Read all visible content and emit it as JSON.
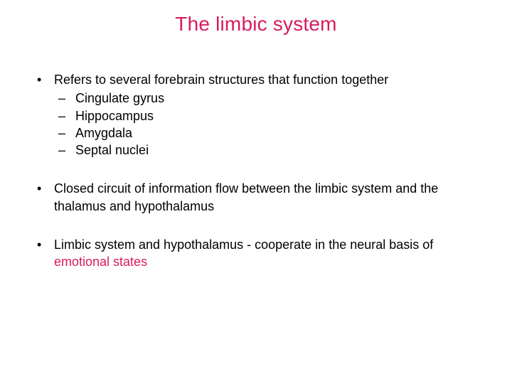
{
  "colors": {
    "title": "#d81b60",
    "body_text": "#000000",
    "accent": "#d81b60",
    "background": "#ffffff"
  },
  "typography": {
    "title_fontsize": 28,
    "title_weight": "400",
    "body_fontsize": 18,
    "font_family": "Arial"
  },
  "title": "The limbic system",
  "bullets": [
    {
      "runs": [
        {
          "text": "Refers to  several forebrain structures that function together",
          "accent": false
        }
      ],
      "sub": [
        "Cingulate gyrus",
        "Hippocampus",
        "Amygdala",
        "Septal nuclei"
      ]
    },
    {
      "runs": [
        {
          "text": "Closed circuit of information flow between the limbic system and the thalamus and hypothalamus",
          "accent": false
        }
      ],
      "sub": []
    },
    {
      "runs": [
        {
          "text": "Limbic system and hypothalamus - cooperate in the neural basis of ",
          "accent": false
        },
        {
          "text": "emotional states",
          "accent": true
        }
      ],
      "sub": []
    }
  ]
}
